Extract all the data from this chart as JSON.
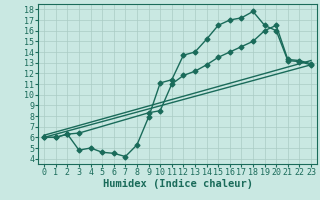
{
  "xlabel": "Humidex (Indice chaleur)",
  "bg_color": "#c9e8e2",
  "grid_color": "#aaccC4",
  "line_color": "#1a6b5a",
  "xlim": [
    -0.5,
    23.5
  ],
  "ylim": [
    3.5,
    18.5
  ],
  "xticks": [
    0,
    1,
    2,
    3,
    4,
    5,
    6,
    7,
    8,
    9,
    10,
    11,
    12,
    13,
    14,
    15,
    16,
    17,
    18,
    19,
    20,
    21,
    22,
    23
  ],
  "yticks": [
    4,
    5,
    6,
    7,
    8,
    9,
    10,
    11,
    12,
    13,
    14,
    15,
    16,
    17,
    18
  ],
  "line1_x": [
    0,
    1,
    2,
    3,
    4,
    5,
    6,
    7,
    8,
    9,
    10,
    11,
    12,
    13,
    14,
    15,
    16,
    17,
    18,
    19,
    20,
    21,
    22,
    23
  ],
  "line1_y": [
    6.0,
    6.0,
    6.3,
    4.8,
    5.0,
    4.6,
    4.5,
    4.2,
    5.3,
    7.9,
    11.1,
    11.4,
    13.7,
    14.0,
    15.2,
    16.5,
    17.0,
    17.2,
    17.8,
    16.5,
    16.0,
    13.2,
    13.1,
    12.8
  ],
  "line2_x": [
    0,
    1,
    2,
    3,
    9,
    10,
    11,
    12,
    13,
    14,
    15,
    16,
    17,
    18,
    19,
    20,
    21,
    22,
    23
  ],
  "line2_y": [
    6.0,
    6.0,
    6.3,
    6.4,
    8.3,
    8.5,
    11.0,
    11.8,
    12.2,
    12.8,
    13.5,
    14.0,
    14.5,
    15.0,
    16.0,
    16.5,
    13.3,
    13.2,
    12.9
  ],
  "line3_x": [
    0,
    23
  ],
  "line3_y": [
    6.0,
    12.8
  ],
  "line4_x": [
    0,
    23
  ],
  "line4_y": [
    6.2,
    13.2
  ],
  "marker_size": 2.5,
  "line_width": 1.0,
  "font_color": "#1a6b5a",
  "tick_fontsize": 6,
  "label_fontsize": 7.5
}
